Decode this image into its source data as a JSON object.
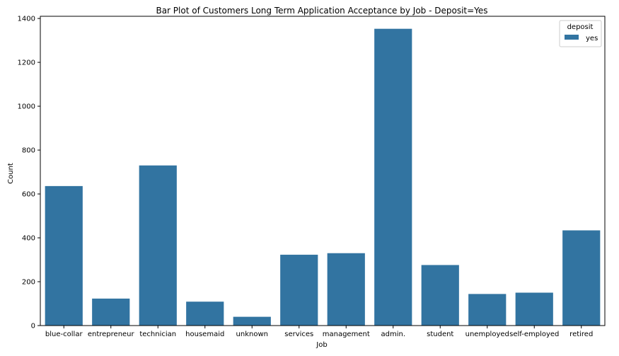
{
  "chart_data": {
    "type": "bar",
    "title": "Bar Plot of Customers Long Term Application Acceptance by Job - Deposit=Yes",
    "xlabel": "Job",
    "ylabel": "Count",
    "categories": [
      "blue-collar",
      "entrepreneur",
      "technician",
      "housemaid",
      "unknown",
      "services",
      "management",
      "admin.",
      "student",
      "unemployed",
      "self-employed",
      "retired"
    ],
    "series": [
      {
        "name": "yes",
        "color": "#3274a1",
        "values": [
          636,
          123,
          730,
          109,
          40,
          323,
          330,
          1353,
          276,
          144,
          150,
          434
        ]
      }
    ],
    "ylim": [
      0,
      1410
    ],
    "yticks": [
      0,
      200,
      400,
      600,
      800,
      1000,
      1200,
      1400
    ],
    "grid": false,
    "legend": {
      "title": "deposit",
      "placement": "top-right",
      "entries": [
        "yes"
      ]
    }
  }
}
